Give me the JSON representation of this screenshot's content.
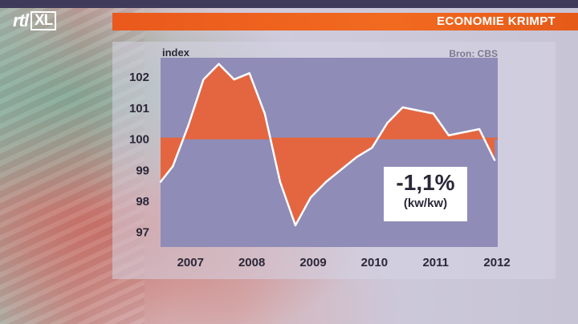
{
  "channel": {
    "logo_rtl": "rtl",
    "logo_xl": "XL"
  },
  "header": {
    "title": "ECONOMIE KRIMPT"
  },
  "source": "Bron: CBS",
  "callout": {
    "value": "-1,1%",
    "sub": "(kw/kw)"
  },
  "colors": {
    "accent": "#f26a20",
    "fill": "#e8643a",
    "line": "#ffffff",
    "plot_bg": "#8f8cb8",
    "baseline": "#e8643a"
  },
  "chart_data": {
    "type": "area",
    "title": "",
    "xlabel": "",
    "ylabel": "index",
    "baseline": 100,
    "ylim": [
      96.5,
      102.6
    ],
    "yticks": [
      97,
      98,
      99,
      100,
      101,
      102
    ],
    "xticks": [
      "2007",
      "2008",
      "2009",
      "2010",
      "2011",
      "2012"
    ],
    "xtick_positions": [
      2007.0,
      2008.0,
      2009.0,
      2010.0,
      2011.0,
      2012.0
    ],
    "xlim": [
      2006.8,
      2012.3
    ],
    "x": [
      2006.8,
      2007.0,
      2007.25,
      2007.5,
      2007.75,
      2008.0,
      2008.25,
      2008.5,
      2008.75,
      2009.0,
      2009.25,
      2009.5,
      2009.75,
      2010.0,
      2010.25,
      2010.5,
      2010.75,
      2011.0,
      2011.25,
      2011.5,
      2011.75,
      2012.0,
      2012.25
    ],
    "values": [
      98.6,
      99.1,
      100.4,
      101.9,
      102.4,
      101.9,
      102.1,
      100.8,
      98.6,
      97.2,
      98.1,
      98.6,
      99.0,
      99.4,
      99.7,
      100.5,
      101.0,
      100.9,
      100.8,
      100.1,
      100.2,
      100.3,
      99.3
    ]
  }
}
